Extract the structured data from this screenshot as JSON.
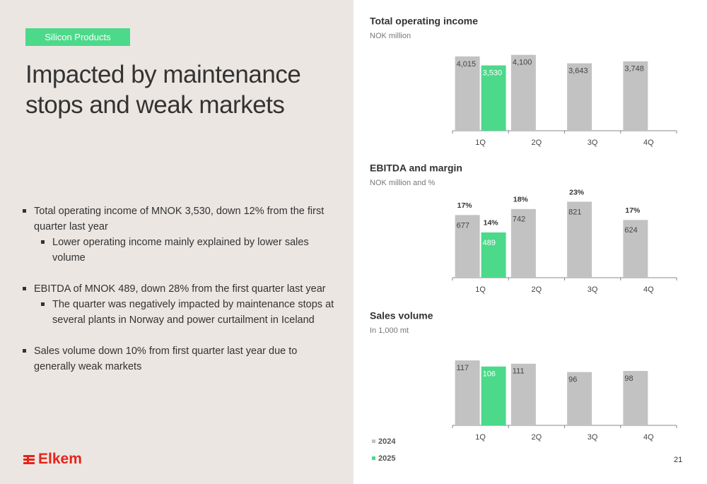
{
  "slide": {
    "tag": "Silicon Products",
    "title": "Impacted by maintenance stops and weak markets",
    "bullets": [
      {
        "text": "Total operating income of MNOK 3,530, down 12% from the first quarter last year",
        "sub": [
          "Lower operating income mainly explained by lower sales volume"
        ]
      },
      {
        "text": "EBITDA of MNOK 489, down 28% from the first quarter last year",
        "sub": [
          "The quarter was negatively impacted by maintenance stops at several plants in Norway and power curtailment in Iceland"
        ]
      },
      {
        "text": "Sales volume down 10% from first quarter last year due to generally weak markets",
        "sub": []
      }
    ],
    "logo": "Elkem",
    "page_number": "21"
  },
  "chart_data": [
    {
      "type": "bar",
      "title": "Total operating income",
      "subtitle": "NOK million",
      "categories": [
        "1Q",
        "2Q",
        "3Q",
        "4Q"
      ],
      "ylim": [
        0,
        4200
      ],
      "series": [
        {
          "name": "2024",
          "color": "#c2c2c2",
          "values": [
            4015,
            4100,
            3643,
            3748
          ],
          "value_labels": [
            "4,015",
            "4,100",
            "3,643",
            "3,748"
          ]
        },
        {
          "name": "2025",
          "color": "#4cd98a",
          "values": [
            3530,
            null,
            null,
            null
          ],
          "value_labels": [
            "3,530",
            null,
            null,
            null
          ]
        }
      ]
    },
    {
      "type": "bar",
      "title": "EBITDA and margin",
      "subtitle": "NOK million and %",
      "categories": [
        "1Q",
        "2Q",
        "3Q",
        "4Q"
      ],
      "ylim": [
        0,
        840
      ],
      "series": [
        {
          "name": "2024",
          "color": "#c2c2c2",
          "values": [
            677,
            742,
            821,
            624
          ],
          "margins": [
            17,
            18,
            23,
            17
          ],
          "margin_labels": [
            "17%",
            "18%",
            "23%",
            "17%"
          ]
        },
        {
          "name": "2025",
          "color": "#4cd98a",
          "values": [
            489,
            null,
            null,
            null
          ],
          "margins": [
            14,
            null,
            null,
            null
          ],
          "margin_labels": [
            "14%",
            null,
            null,
            null
          ]
        }
      ]
    },
    {
      "type": "bar",
      "title": "Sales volume",
      "subtitle": "In 1,000 mt",
      "categories": [
        "1Q",
        "2Q",
        "3Q",
        "4Q"
      ],
      "ylim": [
        0,
        140
      ],
      "series": [
        {
          "name": "2024",
          "color": "#c2c2c2",
          "values": [
            117,
            111,
            96,
            98
          ]
        },
        {
          "name": "2025",
          "color": "#4cd98a",
          "values": [
            106,
            null,
            null,
            null
          ]
        }
      ],
      "legend": "bottom-left"
    }
  ]
}
